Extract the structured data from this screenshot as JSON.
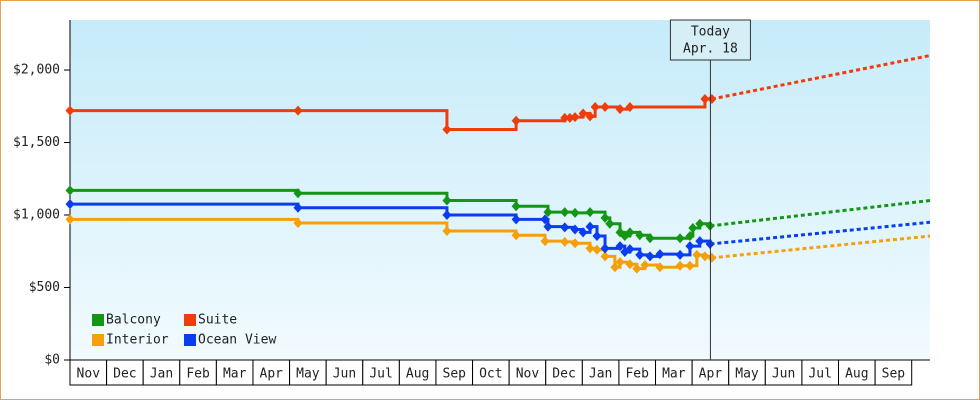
{
  "chart_data": {
    "type": "step-line",
    "categories": [
      "Nov",
      "Dec",
      "Jan",
      "Feb",
      "Mar",
      "Apr",
      "May",
      "Jun",
      "Jul",
      "Aug",
      "Sep",
      "Oct",
      "Nov",
      "Dec",
      "Jan",
      "Feb",
      "Mar",
      "Apr",
      "May",
      "Jun",
      "Jul",
      "Aug",
      "Sep"
    ],
    "xlim": [
      0,
      23.5
    ],
    "ylim": [
      0,
      2345
    ],
    "yticks": [
      {
        "value": 0,
        "label": "$0"
      },
      {
        "value": 500,
        "label": "$500"
      },
      {
        "value": 1000,
        "label": "$1,000"
      },
      {
        "value": 1500,
        "label": "$1,500"
      },
      {
        "value": 2000,
        "label": "$2,000"
      }
    ],
    "legend": "bottom-left",
    "annotation": {
      "text": [
        "Today",
        "Apr. 18"
      ],
      "x": 17.5
    },
    "series": [
      {
        "name": "Balcony",
        "color": "#149614",
        "x": [
          0,
          6.23,
          10.3,
          12.19,
          13.06,
          13.52,
          13.8,
          14.21,
          14.62,
          14.75,
          15.03,
          15.16,
          15.3,
          15.57,
          15.85,
          16.67,
          16.94,
          17.02,
          17.21,
          17.49
        ],
        "values": [
          1170,
          1150,
          1100,
          1060,
          1020,
          1020,
          1015,
          1020,
          980,
          940,
          880,
          855,
          880,
          860,
          840,
          840,
          855,
          910,
          940,
          925
        ],
        "forecast": {
          "x": [
            17.5,
            23.5
          ],
          "values": [
            925,
            1100
          ]
        }
      },
      {
        "name": "Suite",
        "color": "#f03c0a",
        "x": [
          0,
          6.23,
          10.3,
          12.19,
          13.52,
          13.66,
          13.8,
          14.02,
          14.21,
          14.35,
          14.62,
          15.03,
          15.3,
          17.35,
          17.54
        ],
        "values": [
          1720,
          1720,
          1590,
          1650,
          1670,
          1670,
          1675,
          1700,
          1680,
          1745,
          1745,
          1730,
          1745,
          1800,
          1800
        ],
        "forecast": {
          "x": [
            17.54,
            23.5
          ],
          "values": [
            1800,
            2100
          ]
        }
      },
      {
        "name": "Interior",
        "color": "#f5a00a",
        "x": [
          0,
          6.23,
          10.3,
          12.19,
          12.98,
          13.52,
          13.8,
          14.21,
          14.4,
          14.62,
          14.89,
          15.03,
          15.3,
          15.49,
          15.71,
          16.12,
          16.67,
          16.94,
          17.13,
          17.35,
          17.54
        ],
        "values": [
          970,
          945,
          890,
          860,
          820,
          815,
          805,
          770,
          760,
          715,
          640,
          675,
          660,
          630,
          655,
          640,
          650,
          650,
          725,
          715,
          705
        ],
        "forecast": {
          "x": [
            17.54,
            23.5
          ],
          "values": [
            705,
            855
          ]
        }
      },
      {
        "name": "Ocean View",
        "color": "#0a3cf0",
        "x": [
          0,
          6.23,
          10.3,
          12.19,
          12.98,
          13.06,
          13.52,
          13.8,
          14.02,
          14.21,
          14.4,
          14.62,
          15.03,
          15.16,
          15.3,
          15.57,
          15.85,
          16.12,
          16.67,
          16.94,
          17.21,
          17.49
        ],
        "values": [
          1075,
          1050,
          1000,
          970,
          970,
          920,
          915,
          900,
          880,
          920,
          855,
          770,
          785,
          745,
          765,
          725,
          715,
          730,
          725,
          785,
          820,
          800
        ],
        "forecast": {
          "x": [
            17.5,
            23.5
          ],
          "values": [
            800,
            950
          ]
        }
      }
    ]
  }
}
